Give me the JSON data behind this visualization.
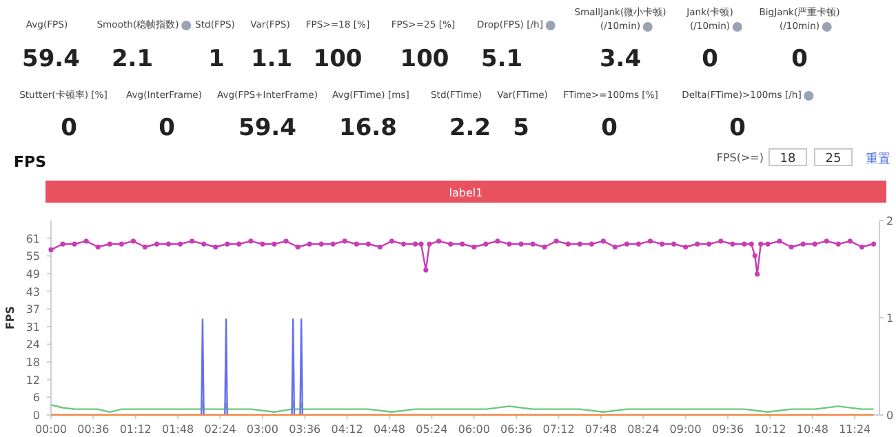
{
  "chart_data": [
    {
      "type": "other",
      "data_labels": true,
      "categories": [
        "Avg(FPS)",
        "Smooth(稳帧指数)",
        "Std(FPS)",
        "Var(FPS)",
        "FPS>=18 [%]",
        "FPS>=25 [%]",
        "Drop(FPS) [/h]",
        "SmallJank(微小卡顿) (/10min)",
        "Jank(卡顿) (/10min)",
        "BigJank(严重卡顿) (/10min)",
        "Stutter(卡顿率) [%]",
        "Avg(InterFrame)",
        "Avg(FPS+InterFrame)",
        "Avg(FTime) [ms]",
        "Std(FTime)",
        "Var(FTime)",
        "FTime>=100ms [%]",
        "Delta(FTime)>100ms [/h]"
      ],
      "values": [
        59.4,
        2.1,
        1,
        1.1,
        100,
        100,
        5.1,
        3.4,
        0,
        0,
        0,
        0,
        59.4,
        16.8,
        2.2,
        5,
        0,
        0
      ]
    },
    {
      "type": "line",
      "title": "FPS",
      "ylabel": "FPS",
      "grid": false,
      "annotations": [
        "label1",
        "FPS(>=)",
        "18",
        "25",
        "重置"
      ],
      "xlim": [
        0,
        705
      ],
      "ylim": [
        0,
        67.1
      ],
      "y2lim": [
        0,
        2
      ],
      "y2ticks": [
        0,
        1,
        2
      ],
      "xticks": [
        {
          "value": 0,
          "label": "00:00"
        },
        {
          "value": 36,
          "label": "00:36"
        },
        {
          "value": 72,
          "label": "01:12"
        },
        {
          "value": 108,
          "label": "01:48"
        },
        {
          "value": 144,
          "label": "02:24"
        },
        {
          "value": 180,
          "label": "03:00"
        },
        {
          "value": 216,
          "label": "03:36"
        },
        {
          "value": 252,
          "label": "04:12"
        },
        {
          "value": 288,
          "label": "04:48"
        },
        {
          "value": 324,
          "label": "05:24"
        },
        {
          "value": 360,
          "label": "06:00"
        },
        {
          "value": 396,
          "label": "06:36"
        },
        {
          "value": 432,
          "label": "07:12"
        },
        {
          "value": 468,
          "label": "07:48"
        },
        {
          "value": 504,
          "label": "08:24"
        },
        {
          "value": 540,
          "label": "09:00"
        },
        {
          "value": 576,
          "label": "09:36"
        },
        {
          "value": 612,
          "label": "10:12"
        },
        {
          "value": 648,
          "label": "10:48"
        },
        {
          "value": 684,
          "label": "11:24"
        }
      ],
      "yticks": [
        0,
        {
          "value": 6.1,
          "label": "6"
        },
        {
          "value": 12.2,
          "label": "12"
        },
        {
          "value": 18.3,
          "label": "18"
        },
        {
          "value": 24.4,
          "label": "24"
        },
        {
          "value": 30.5,
          "label": "31"
        },
        {
          "value": 36.6,
          "label": "37"
        },
        {
          "value": 42.7,
          "label": "43"
        },
        {
          "value": 48.8,
          "label": "49"
        },
        {
          "value": 54.9,
          "label": "55"
        },
        61
      ],
      "series": [
        {
          "color": "#c83cb4",
          "marker": "circle",
          "x": [
            0,
            10,
            20,
            30,
            40,
            50,
            60,
            70,
            80,
            90,
            100,
            110,
            120,
            130,
            140,
            150,
            160,
            170,
            180,
            190,
            200,
            210,
            220,
            230,
            240,
            250,
            260,
            270,
            280,
            290,
            300,
            310,
            315,
            319,
            322,
            330,
            340,
            350,
            360,
            370,
            380,
            390,
            400,
            410,
            420,
            430,
            440,
            450,
            460,
            470,
            480,
            490,
            500,
            510,
            520,
            530,
            540,
            550,
            560,
            570,
            580,
            590,
            596,
            599,
            601,
            604,
            610,
            620,
            630,
            640,
            650,
            660,
            670,
            680,
            690,
            700
          ],
          "values": [
            57,
            59,
            59,
            60,
            58,
            59,
            59,
            60,
            58,
            59,
            59,
            59,
            60,
            59,
            58,
            59,
            59,
            60,
            59,
            59,
            60,
            58,
            59,
            59,
            59,
            60,
            59,
            59,
            58,
            60,
            59,
            59,
            59,
            50,
            59,
            60,
            59,
            59,
            58,
            59,
            60,
            59,
            59,
            59,
            58,
            60,
            59,
            59,
            59,
            60,
            58,
            59,
            59,
            60,
            59,
            59,
            58,
            59,
            59,
            60,
            59,
            59,
            59,
            55,
            48.6,
            59,
            59,
            60,
            58,
            59,
            59,
            60,
            59,
            60,
            58,
            59
          ]
        },
        {
          "color": "#6cc87c",
          "x": [
            0,
            10,
            20,
            40,
            50,
            60,
            80,
            100,
            120,
            128,
            129,
            130,
            140,
            148,
            149,
            150,
            170,
            190,
            205,
            206,
            207,
            212,
            213,
            214,
            230,
            250,
            270,
            290,
            310,
            330,
            350,
            370,
            390,
            410,
            430,
            450,
            470,
            490,
            510,
            530,
            550,
            570,
            590,
            610,
            630,
            650,
            670,
            690,
            700
          ],
          "values": [
            3.5,
            2.5,
            2,
            2,
            1,
            2,
            2,
            2,
            2,
            2,
            4.5,
            2,
            2,
            2,
            4,
            2,
            2,
            1,
            2,
            4.5,
            2,
            2,
            4,
            2,
            2,
            2,
            2,
            1,
            2,
            2,
            2,
            2,
            3,
            2,
            2,
            2,
            1,
            2,
            2,
            2,
            2,
            2,
            2,
            1,
            2,
            2,
            3,
            2,
            2
          ]
        },
        {
          "color": "#6670ec",
          "x": [
            128,
            129,
            130,
            139,
            148,
            149,
            150,
            177,
            205,
            206,
            207,
            209,
            212,
            213,
            214
          ],
          "values": [
            0,
            33,
            0,
            null,
            0,
            33,
            0,
            null,
            0,
            33,
            0,
            null,
            0,
            33,
            0
          ]
        },
        {
          "color": "#f08848",
          "x": [
            0,
            700
          ],
          "values": [
            0,
            0
          ]
        }
      ]
    }
  ]
}
